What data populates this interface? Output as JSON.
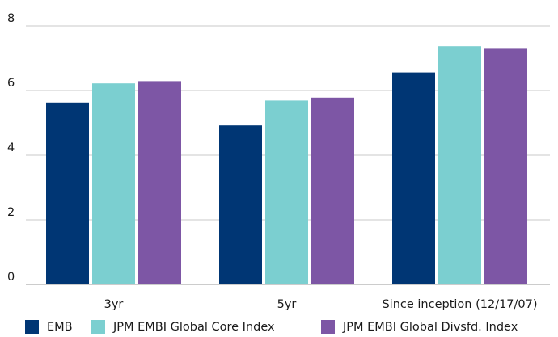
{
  "chart_data": {
    "type": "bar",
    "title": "",
    "xlabel": "",
    "ylabel": "",
    "categories": [
      "3yr",
      "5yr",
      "Since inception (12/17/07)"
    ],
    "series": [
      {
        "name": "EMB",
        "values": [
          5.63,
          4.92,
          6.56
        ],
        "color": "#003674"
      },
      {
        "name": "JPM EMBI Global Core Index",
        "values": [
          6.22,
          5.69,
          7.37
        ],
        "color": "#7bcfd0"
      },
      {
        "name": "JPM EMBI Global Divsfd. Index",
        "values": [
          6.29,
          5.78,
          7.29
        ],
        "color": "#7d56a5"
      }
    ],
    "ylim": [
      0,
      8
    ],
    "yticks": [
      0,
      2,
      4,
      6,
      8
    ],
    "grid": true,
    "legend_position": "bottom"
  }
}
